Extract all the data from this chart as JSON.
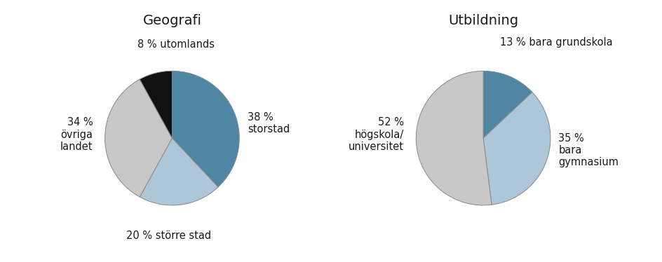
{
  "geo_title": "Geografi",
  "geo_values": [
    38,
    20,
    34,
    8
  ],
  "geo_colors": [
    "#4e86a4",
    "#adc6d8",
    "#c8c8c8",
    "#111111"
  ],
  "edu_title": "Utbildning",
  "edu_values": [
    13,
    35,
    52
  ],
  "edu_colors": [
    "#4e86a4",
    "#adc6d8",
    "#c8c8c8"
  ],
  "background_color": "#ffffff",
  "text_color": "#1a1a1a",
  "font_size": 10.5,
  "title_font_size": 14
}
